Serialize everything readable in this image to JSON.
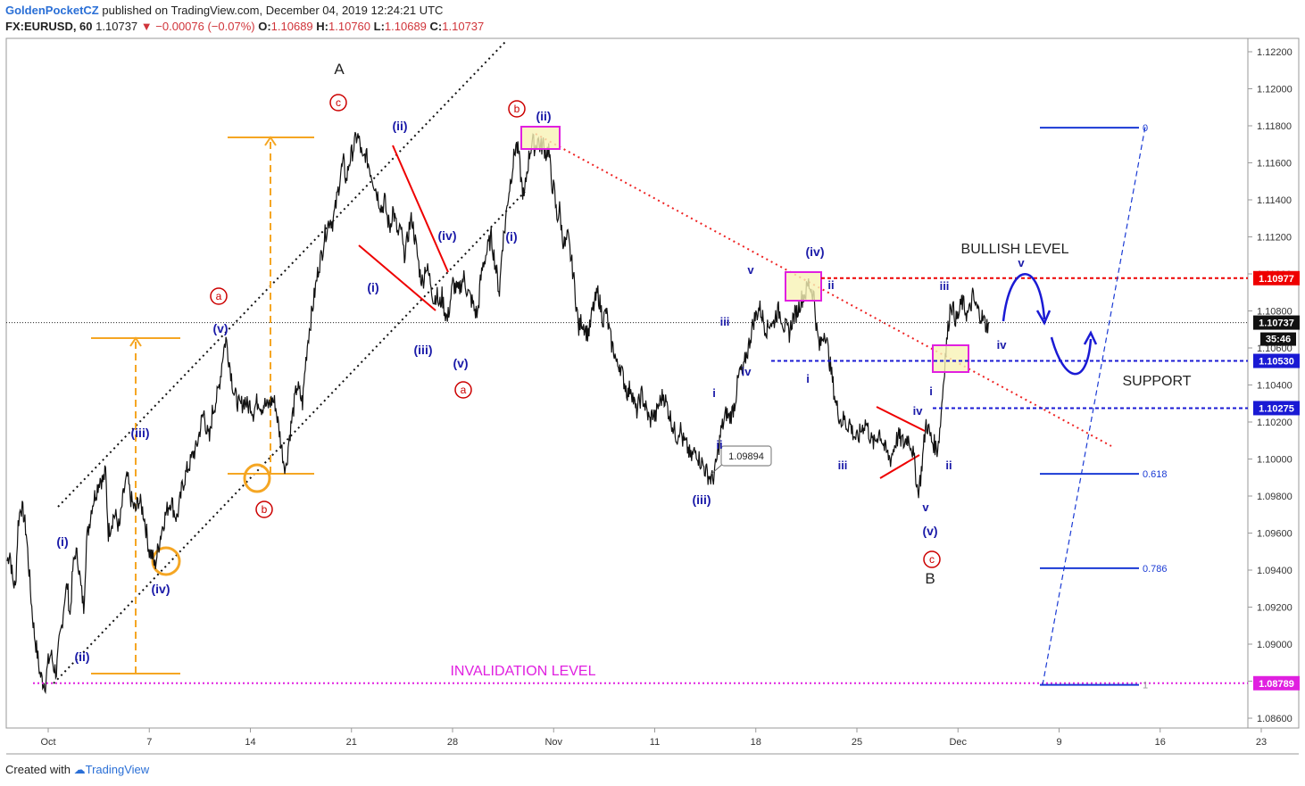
{
  "header": {
    "publisher": "GoldenPocketCZ",
    "published_text": "published on TradingView.com, December 04, 2019 12:24:21 UTC",
    "symbol": "FX:EURUSD, 60",
    "last": "1.10737",
    "change": "−0.00076 (−0.07%)",
    "o_label": "O:",
    "o_value": "1.10689",
    "h_label": "H:",
    "h_value": "1.10760",
    "l_label": "L:",
    "l_value": "1.10689",
    "c_label": "C:",
    "c_value": "1.10737"
  },
  "footer": {
    "created_with": "Created with",
    "brand": "TradingView"
  },
  "colors": {
    "blue": "#1a1aa8",
    "red": "#d40000",
    "orange": "#f5a623",
    "magenta": "#e020e0",
    "dark_red": "#b00000",
    "fib": "#1a3ad4"
  },
  "chart_data": {
    "type": "line",
    "title": "",
    "xlabel": "",
    "ylabel": "",
    "ylim": [
      1.085,
      1.123
    ],
    "x_tick_labels": [
      "Oct",
      "7",
      "14",
      "21",
      "28",
      "Nov",
      "11",
      "18",
      "25",
      "Dec",
      "9",
      "16",
      "23"
    ],
    "y_tick_labels": [
      "1.12200",
      "1.12000",
      "1.11800",
      "1.11600",
      "1.11400",
      "1.11200",
      "1.11000",
      "1.10800",
      "1.10600",
      "1.10400",
      "1.10200",
      "1.10000",
      "1.09800",
      "1.09600",
      "1.09400",
      "1.09200",
      "1.09000",
      "1.08800",
      "1.08600"
    ],
    "series": [
      {
        "values": [
          1.0945,
          1.095,
          1.0935,
          1.093,
          1.0965,
          1.0975,
          1.097,
          1.096,
          1.094,
          1.092,
          1.0905,
          1.0895,
          1.0884,
          1.088,
          1.0879,
          1.089,
          1.0895,
          1.0888,
          1.0885,
          1.09,
          1.091,
          1.0925,
          1.0932,
          1.0915,
          1.094,
          1.095,
          1.0945,
          1.093,
          1.092,
          1.0955,
          1.0965,
          1.0975,
          1.098,
          1.0985,
          1.099,
          1.0988,
          1.0993,
          1.096,
          1.0965,
          1.097,
          1.0968,
          1.0962,
          1.0975,
          1.0985,
          1.099,
          1.098,
          1.0975,
          1.0972,
          1.0978,
          1.0975,
          1.097,
          1.096,
          1.095,
          1.0948,
          1.0942,
          1.095,
          1.0958,
          1.0965,
          1.097,
          1.0975,
          1.0978,
          1.0972,
          1.0968,
          1.0975,
          1.0985,
          1.099,
          1.0995,
          1.0998,
          1.1003,
          1.1005,
          1.1012,
          1.102,
          1.1025,
          1.1015,
          1.101,
          1.1025,
          1.103,
          1.1035,
          1.1045,
          1.1058,
          1.1065,
          1.1055,
          1.1045,
          1.1035,
          1.1032,
          1.1028,
          1.103,
          1.1032,
          1.1028,
          1.103,
          1.1025,
          1.103,
          1.1032,
          1.1028,
          1.103,
          1.1028,
          1.103,
          1.1032,
          1.103,
          1.102,
          1.101,
          1.1,
          1.0995,
          1.101,
          1.102,
          1.103,
          1.104,
          1.1035,
          1.103,
          1.105,
          1.1065,
          1.1075,
          1.1085,
          1.1095,
          1.1105,
          1.111,
          1.112,
          1.1125,
          1.113,
          1.1128,
          1.1135,
          1.1145,
          1.1155,
          1.116,
          1.115,
          1.116,
          1.1165,
          1.117,
          1.1175,
          1.117,
          1.116,
          1.1165,
          1.116,
          1.1155,
          1.115,
          1.1145,
          1.114,
          1.1135,
          1.114,
          1.113,
          1.1125,
          1.1135,
          1.1128,
          1.112,
          1.1125,
          1.111,
          1.1115,
          1.1125,
          1.113,
          1.112,
          1.111,
          1.11,
          1.1095,
          1.1105,
          1.11,
          1.1095,
          1.1085,
          1.109,
          1.1082,
          1.1088,
          1.108,
          1.1075,
          1.1085,
          1.1095,
          1.1092,
          1.109,
          1.1095,
          1.1098,
          1.1092,
          1.1088,
          1.1085,
          1.108,
          1.1078,
          1.1095,
          1.1105,
          1.111,
          1.1115,
          1.112,
          1.111,
          1.11,
          1.109,
          1.1115,
          1.1125,
          1.114,
          1.115,
          1.116,
          1.117,
          1.1165,
          1.115,
          1.114,
          1.1155,
          1.1165,
          1.1172,
          1.1168,
          1.1173,
          1.1168,
          1.117,
          1.1165,
          1.1168,
          1.115,
          1.1145,
          1.113,
          1.1135,
          1.112,
          1.1115,
          1.112,
          1.111,
          1.11,
          1.1085,
          1.107,
          1.1075,
          1.1072,
          1.1068,
          1.107,
          1.108,
          1.1085,
          1.109,
          1.1082,
          1.1075,
          1.108,
          1.107,
          1.1062,
          1.1058,
          1.105,
          1.1052,
          1.1045,
          1.104,
          1.1035,
          1.104,
          1.1032,
          1.1025,
          1.103,
          1.1035,
          1.103,
          1.1025,
          1.102,
          1.1025,
          1.1022,
          1.1028,
          1.1032,
          1.1035,
          1.103,
          1.1025,
          1.102,
          1.1015,
          1.1012,
          1.1018,
          1.101,
          1.1008,
          1.1005,
          1.1,
          1.1003,
          1.1005,
          1.1,
          1.0998,
          1.0995,
          1.0992,
          1.099,
          1.0989,
          1.0995,
          1.1005,
          1.1015,
          1.102,
          1.1025,
          1.1022,
          1.1025,
          1.103,
          1.104,
          1.1048,
          1.1045,
          1.1055,
          1.106,
          1.1068,
          1.1075,
          1.1078,
          1.1082,
          1.1078,
          1.1072,
          1.107,
          1.1075,
          1.1072,
          1.1078,
          1.108,
          1.1078,
          1.1072,
          1.107,
          1.1068,
          1.1075,
          1.1078,
          1.108,
          1.1085,
          1.1088,
          1.109,
          1.1095,
          1.1092,
          1.1088,
          1.107,
          1.106,
          1.1065,
          1.107,
          1.106,
          1.105,
          1.104,
          1.103,
          1.1025,
          1.102,
          1.1022,
          1.1018,
          1.102,
          1.1015,
          1.1012,
          1.101,
          1.1015,
          1.1018,
          1.102,
          1.1015,
          1.101,
          1.1008,
          1.1012,
          1.1015,
          1.101,
          1.1005,
          1.1002,
          1.1,
          1.1005,
          1.101,
          1.1012,
          1.101,
          1.1008,
          1.1012,
          1.101,
          1.1005,
          1.0995,
          1.0982,
          1.099,
          1.1005,
          1.102,
          1.1015,
          1.101,
          1.1008,
          1.1005,
          1.1015,
          1.1035,
          1.1055,
          1.107,
          1.1085,
          1.108,
          1.1075,
          1.1078,
          1.1085,
          1.1082,
          1.1078,
          1.108,
          1.1088,
          1.1083,
          1.108,
          1.1078,
          1.1075,
          1.1072,
          1.1074
        ]
      }
    ],
    "annotations": {
      "A": "A",
      "B": "B",
      "a": "a",
      "b": "b",
      "c": "c",
      "i_paren": "(i)",
      "ii_paren": "(ii)",
      "iii_paren": "(iii)",
      "iv_paren": "(iv)",
      "v_paren": "(v)",
      "i": "i",
      "ii": "ii",
      "iii": "iii",
      "iv": "iv",
      "v": "v",
      "bullish": "BULLISH LEVEL",
      "support": "SUPPORT",
      "invalidation": "INVALIDATION LEVEL",
      "low_callout": "1.09894"
    },
    "levels": {
      "bullish": {
        "value": 1.10977,
        "label": "1.10977"
      },
      "current": {
        "value": 1.10737,
        "label": "1.10737",
        "countdown": "35:46"
      },
      "support1": {
        "value": 1.1053,
        "label": "1.10530"
      },
      "support2": {
        "value": 1.10275,
        "label": "1.10275"
      },
      "invalidation": {
        "value": 1.08789,
        "label": "1.08789"
      }
    },
    "fib": [
      {
        "label": "0",
        "value": 1.1179
      },
      {
        "label": "0.618",
        "value": 1.0992
      },
      {
        "label": "0.786",
        "value": 1.0941
      },
      {
        "label": "1",
        "value": 1.0878
      }
    ]
  }
}
